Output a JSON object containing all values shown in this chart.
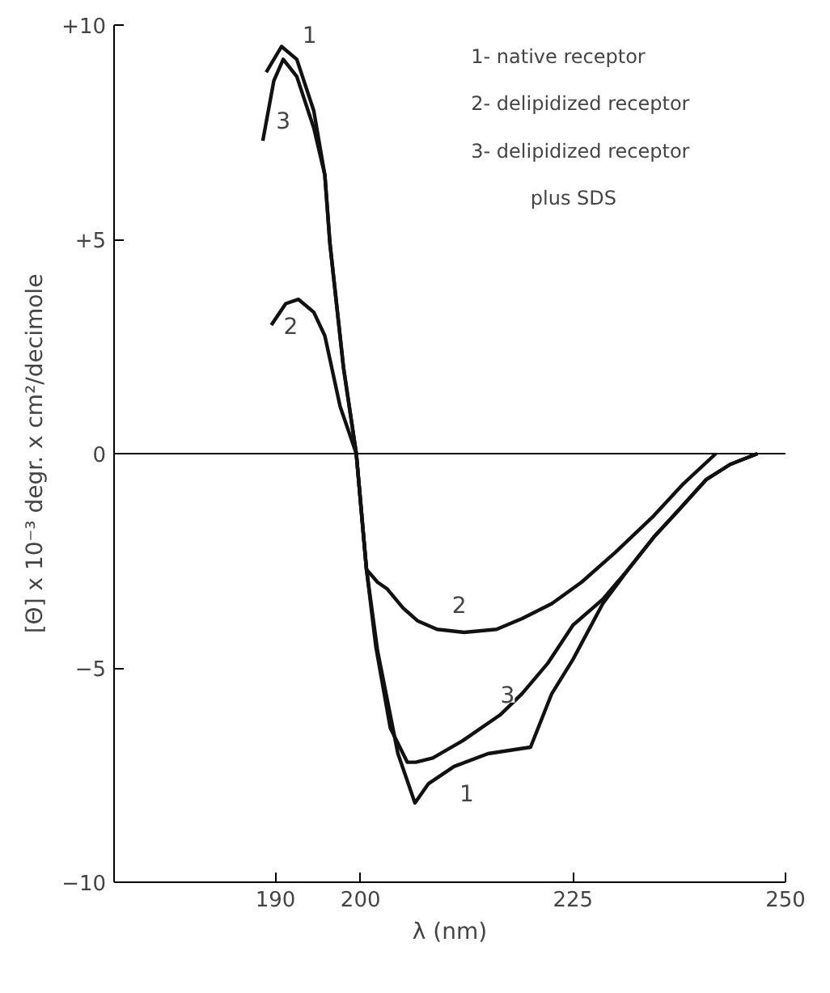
{
  "chart_data": {
    "type": "line",
    "xlabel": "λ (nm)",
    "ylabel": "[Θ] x 10⁻³ degr. x cm²/decimole",
    "xlim": [
      171,
      250
    ],
    "ylim": [
      -10,
      10
    ],
    "xticks": [
      190,
      200,
      225,
      250
    ],
    "yticks": [
      {
        "value": 10,
        "label": "+10"
      },
      {
        "value": 5,
        "label": "+5"
      },
      0,
      -5,
      -10
    ],
    "grid": false,
    "color": "#111111",
    "series": [
      {
        "x": [
          188.9,
          190.7,
          192.5,
          194.5,
          195.8,
          196.4,
          198,
          199.5,
          200.7,
          202,
          204.4,
          206.4,
          208,
          211,
          215,
          220,
          222.5,
          225,
          228.5,
          231.5,
          234.5,
          237.5,
          240.7,
          243.5,
          246.7
        ],
        "values": [
          8.9,
          9.5,
          9.2,
          8.0,
          6.5,
          4.9,
          2.0,
          0,
          -2.7,
          -4.6,
          -7.0,
          -8.15,
          -7.7,
          -7.3,
          -7.0,
          -6.85,
          -5.6,
          -4.8,
          -3.5,
          -2.7,
          -1.95,
          -1.3,
          -0.6,
          -0.25,
          0
        ]
      },
      {
        "x": [
          189.5,
          191.2,
          192.7,
          194.5,
          195.8,
          197.6,
          199.5,
          200.7,
          202,
          203.1,
          205,
          206.7,
          209,
          212.2,
          216,
          219,
          222.5,
          226,
          230,
          234.5,
          238,
          241.8
        ],
        "values": [
          3.0,
          3.5,
          3.6,
          3.3,
          2.75,
          1.1,
          0,
          -2.7,
          -3.0,
          -3.15,
          -3.6,
          -3.9,
          -4.1,
          -4.17,
          -4.1,
          -3.85,
          -3.5,
          -3.0,
          -2.3,
          -1.45,
          -0.7,
          0
        ]
      },
      {
        "x": [
          188.5,
          189.8,
          190.9,
          192.5,
          194.5,
          195.8,
          196.4,
          198,
          199.5,
          200.7,
          201.8,
          203.5,
          205.5,
          206.5,
          208.5,
          212,
          216.4,
          219,
          222,
          225,
          228.5,
          231.5,
          234.5,
          237.5,
          240.7,
          243.5,
          246.7
        ],
        "values": [
          7.3,
          8.7,
          9.2,
          8.8,
          7.6,
          6.5,
          4.9,
          2.0,
          0,
          -2.7,
          -4.5,
          -6.4,
          -7.2,
          -7.2,
          -7.1,
          -6.7,
          -6.1,
          -5.6,
          -4.9,
          -4.0,
          -3.4,
          -2.7,
          -1.95,
          -1.3,
          -0.6,
          -0.25,
          0
        ]
      }
    ],
    "ref_lines": [
      {
        "axis": "y",
        "value": 0,
        "label": null
      }
    ],
    "annotations": [
      {
        "text": "1",
        "x": 194,
        "y": 9.8
      },
      {
        "text": "3",
        "x": 190.9,
        "y": 7.8
      },
      {
        "text": "2",
        "x": 191.8,
        "y": 3.0
      },
      {
        "text": "2",
        "x": 211.6,
        "y": -3.5
      },
      {
        "text": "3",
        "x": 217.3,
        "y": -5.6
      },
      {
        "text": "1",
        "x": 212.5,
        "y": -7.9
      },
      "1- native receptor",
      "2- delipidized receptor",
      "3- delipidized receptor",
      "plus SDS"
    ]
  }
}
